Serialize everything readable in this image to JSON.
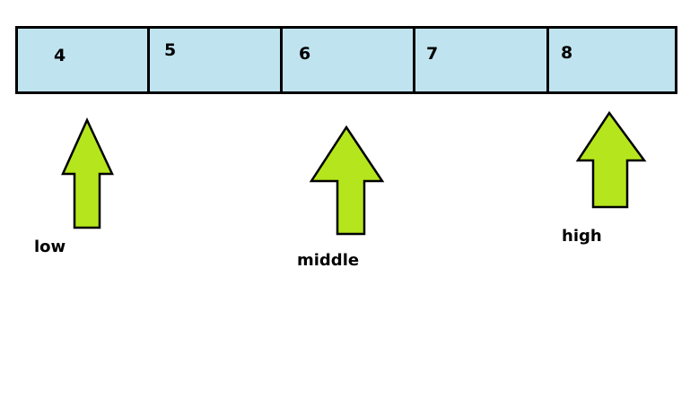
{
  "array": {
    "values": [
      "4",
      "5",
      "6",
      "7",
      "8"
    ]
  },
  "pointers": {
    "low": "low",
    "middle": "middle",
    "high": "high"
  },
  "colors": {
    "cell_fill": "#c0e4ef",
    "arrow_fill": "#b5e61d",
    "stroke": "#000000"
  }
}
